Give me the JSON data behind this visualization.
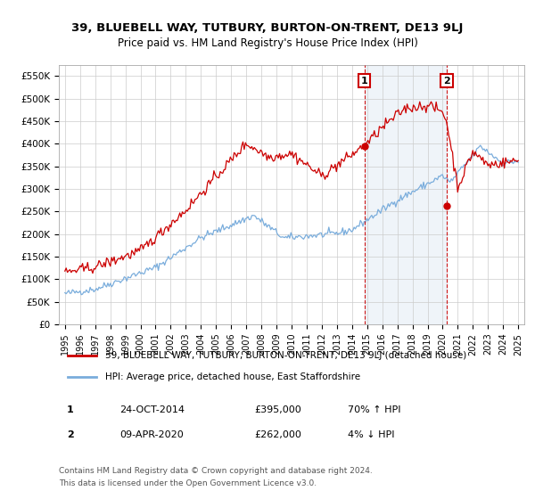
{
  "title": "39, BLUEBELL WAY, TUTBURY, BURTON-ON-TRENT, DE13 9LJ",
  "subtitle": "Price paid vs. HM Land Registry's House Price Index (HPI)",
  "ylabel_ticks": [
    "£0",
    "£50K",
    "£100K",
    "£150K",
    "£200K",
    "£250K",
    "£300K",
    "£350K",
    "£400K",
    "£450K",
    "£500K",
    "£550K"
  ],
  "ytick_values": [
    0,
    50000,
    100000,
    150000,
    200000,
    250000,
    300000,
    350000,
    400000,
    450000,
    500000,
    550000
  ],
  "ylim": [
    0,
    575000
  ],
  "legend_red": "39, BLUEBELL WAY, TUTBURY, BURTON-ON-TRENT, DE13 9LJ (detached house)",
  "legend_blue": "HPI: Average price, detached house, East Staffordshire",
  "annotation1_label": "1",
  "annotation1_date": "24-OCT-2014",
  "annotation1_price": "£395,000",
  "annotation1_hpi": "70% ↑ HPI",
  "annotation2_label": "2",
  "annotation2_date": "09-APR-2020",
  "annotation2_price": "£262,000",
  "annotation2_hpi": "4% ↓ HPI",
  "footer": "Contains HM Land Registry data © Crown copyright and database right 2024.\nThis data is licensed under the Open Government Licence v3.0.",
  "red_color": "#cc0000",
  "blue_color": "#7aaddc",
  "shade_color": "#ddeeff",
  "dashed_vline_color": "#cc0000",
  "bg_color": "#ffffff",
  "grid_color": "#cccccc",
  "point1_x": 2014.82,
  "point1_y": 395000,
  "point2_x": 2020.27,
  "point2_y": 262000,
  "xmin": 1995,
  "xmax": 2025
}
